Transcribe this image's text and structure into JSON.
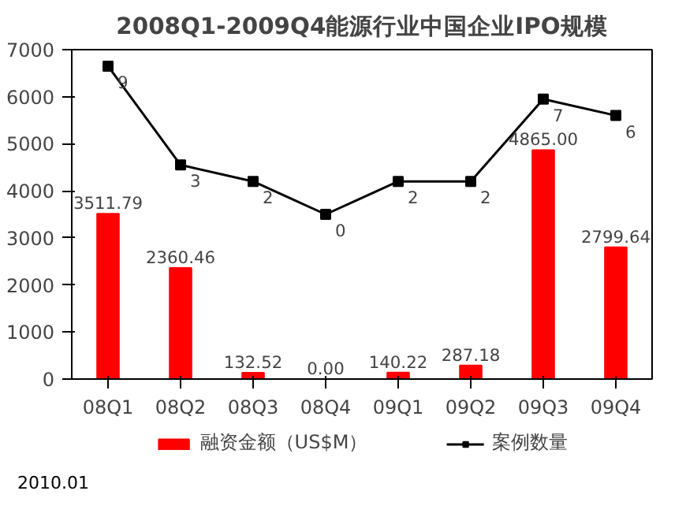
{
  "chart_data": {
    "type": "bar",
    "title": "2008Q1-2009Q4能源行业中国企业IPO规模",
    "categories": [
      "08Q1",
      "08Q2",
      "08Q3",
      "08Q4",
      "09Q1",
      "09Q2",
      "09Q3",
      "09Q4"
    ],
    "series": [
      {
        "name": "融资金额（US$M）",
        "color": "#ff0000",
        "values": [
          3511.79,
          2360.46,
          132.52,
          0.0,
          140.22,
          287.18,
          4865.0,
          2799.64
        ],
        "value_labels": [
          "3511.79",
          "2360.46",
          "132.52",
          "0.00",
          "140.22",
          "287.18",
          "4865.00",
          "2799.64"
        ]
      },
      {
        "name": "案例数量",
        "type": "line",
        "axis": "y2",
        "color": "#000000",
        "marker": "square",
        "values": [
          9,
          3,
          2,
          0,
          2,
          2,
          7,
          6
        ],
        "value_labels": [
          "9",
          "3",
          "2",
          "0",
          "2",
          "2",
          "7",
          "6"
        ]
      }
    ],
    "ylim": [
      0,
      7000
    ],
    "yticks": [
      0,
      1000,
      2000,
      3000,
      4000,
      5000,
      6000,
      7000
    ],
    "y2lim": [
      -10,
      10
    ],
    "legend": "bottom",
    "grid": false,
    "annotations": [
      "2010.01"
    ]
  }
}
